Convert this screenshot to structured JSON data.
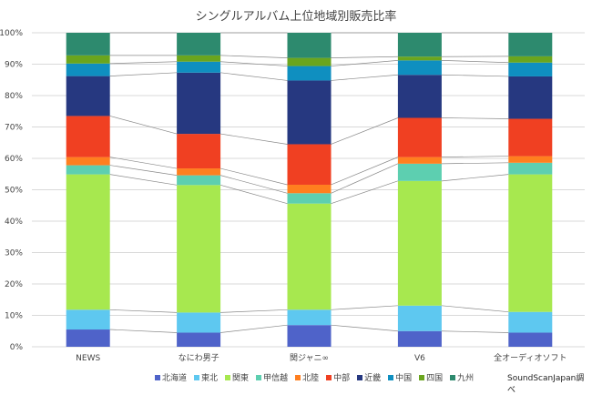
{
  "chart_data": {
    "type": "bar",
    "stacked": "percent",
    "title": "シングルアルバム上位地域別販売比率",
    "categories": [
      "NEWS",
      "なにわ男子",
      "関ジャニ∞",
      "V6",
      "全オーディオソフト"
    ],
    "yticks": [
      "0%",
      "10%",
      "20%",
      "30%",
      "40%",
      "50%",
      "60%",
      "70%",
      "80%",
      "90%",
      "100%"
    ],
    "ylim": [
      0,
      100
    ],
    "grid": true,
    "legend": "bottom",
    "series": [
      {
        "name": "北海道",
        "color": "#4f63c9",
        "values": [
          5.5,
          4.5,
          6.9,
          5.0,
          4.5
        ]
      },
      {
        "name": "東北",
        "color": "#5ec8f0",
        "values": [
          6.3,
          6.4,
          4.9,
          8.1,
          6.6
        ]
      },
      {
        "name": "関東",
        "color": "#a7e84f",
        "values": [
          43.1,
          40.6,
          33.8,
          39.7,
          43.8
        ]
      },
      {
        "name": "甲信越",
        "color": "#5dcfb0",
        "values": [
          2.9,
          3.1,
          3.3,
          5.5,
          3.7
        ]
      },
      {
        "name": "北陸",
        "color": "#ff7f1f",
        "values": [
          2.6,
          2.2,
          2.7,
          2.1,
          2.1
        ]
      },
      {
        "name": "中部",
        "color": "#f04022",
        "values": [
          13.1,
          11.0,
          12.9,
          12.5,
          11.9
        ]
      },
      {
        "name": "近畿",
        "color": "#263880",
        "values": [
          12.7,
          19.5,
          20.3,
          13.7,
          13.5
        ]
      },
      {
        "name": "中国",
        "color": "#0f8fc0",
        "values": [
          4.0,
          3.5,
          4.6,
          4.6,
          4.4
        ]
      },
      {
        "name": "四国",
        "color": "#6aa51e",
        "values": [
          2.6,
          2.0,
          2.6,
          1.2,
          2.0
        ]
      },
      {
        "name": "九州",
        "color": "#2d8a6e",
        "values": [
          7.2,
          7.2,
          8.0,
          7.6,
          7.5
        ]
      }
    ],
    "source": "SoundScanJapan調べ"
  }
}
